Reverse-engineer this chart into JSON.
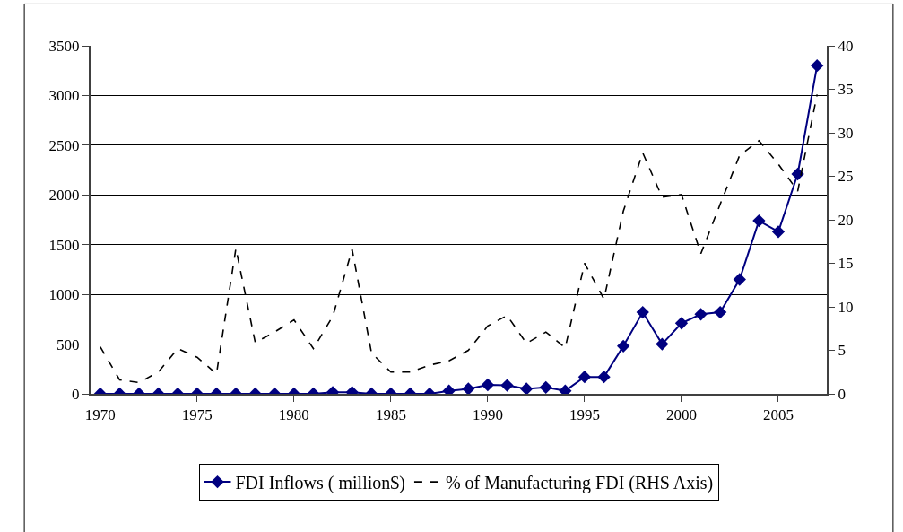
{
  "chart_data": {
    "type": "line",
    "x": [
      1970,
      1971,
      1972,
      1973,
      1974,
      1975,
      1976,
      1977,
      1978,
      1979,
      1980,
      1981,
      1982,
      1983,
      1984,
      1985,
      1986,
      1987,
      1988,
      1989,
      1990,
      1991,
      1992,
      1993,
      1994,
      1995,
      1996,
      1997,
      1998,
      1999,
      2000,
      2001,
      2002,
      2003,
      2004,
      2005,
      2006,
      2007
    ],
    "series": [
      {
        "name": "FDI Inflows ( million$)",
        "color": "#000080",
        "marker": "diamond",
        "line_style": "solid",
        "values": [
          0,
          0,
          0,
          0,
          0,
          0,
          0,
          0,
          0,
          0,
          0,
          0,
          15,
          15,
          0,
          0,
          0,
          0,
          30,
          50,
          90,
          85,
          50,
          65,
          30,
          170,
          170,
          480,
          820,
          500,
          710,
          800,
          820,
          1150,
          1740,
          1630,
          2210,
          3300
        ]
      },
      {
        "name": "% of Manufacturing FDI (RHS Axis)",
        "color": "#000000",
        "marker": "none",
        "line_style": "dashed",
        "axis": "y2",
        "values": [
          5.4,
          1.6,
          1.3,
          2.5,
          5.2,
          4.2,
          2.3,
          16.7,
          5.9,
          7.1,
          8.5,
          5.2,
          8.9,
          16.6,
          4.7,
          2.5,
          2.5,
          3.3,
          3.8,
          5.0,
          7.8,
          9.0,
          5.8,
          7.1,
          5.3,
          15.0,
          10.9,
          21.0,
          27.7,
          22.6,
          22.9,
          16.1,
          21.8,
          27.4,
          29.1,
          26.4,
          23.3,
          34.4
        ]
      }
    ],
    "xlim": [
      1969.5,
      2007.5
    ],
    "xticks": [
      1970,
      1975,
      1980,
      1985,
      1990,
      1995,
      2000,
      2005
    ],
    "ylim": [
      0,
      3500
    ],
    "yticks": [
      0,
      500,
      1000,
      1500,
      2000,
      2500,
      3000,
      3500
    ],
    "y2lim": [
      0,
      40
    ],
    "y2ticks": [
      0,
      5,
      10,
      15,
      20,
      25,
      30,
      35,
      40
    ],
    "grid": "y",
    "legend": "bottom"
  }
}
